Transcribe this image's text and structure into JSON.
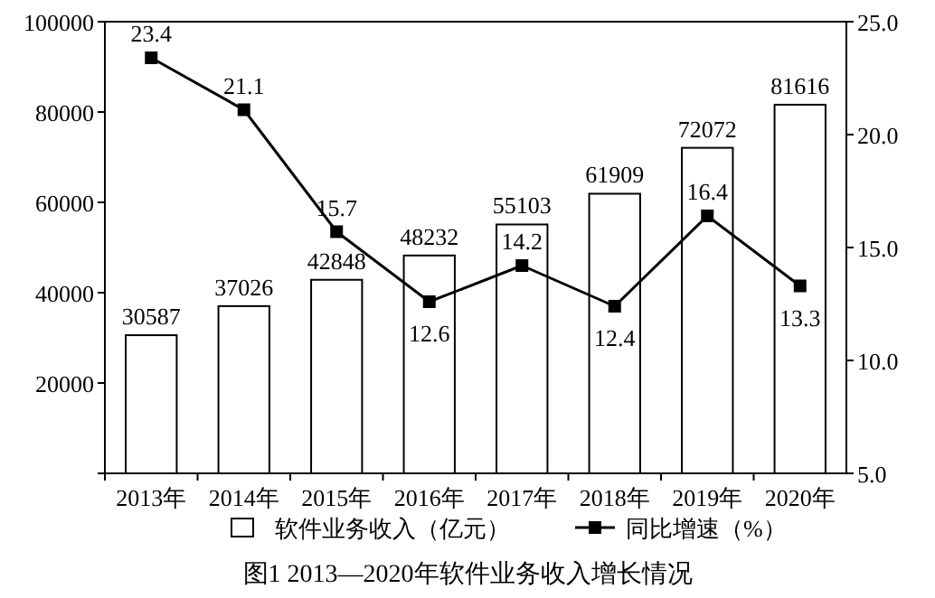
{
  "chart_data": {
    "type": "bar",
    "title": "图1 2013—2020年软件业务收入增长情况",
    "categories": [
      "2013年",
      "2014年",
      "2015年",
      "2016年",
      "2017年",
      "2018年",
      "2019年",
      "2020年"
    ],
    "series": [
      {
        "name": "软件业务收入（亿元）",
        "color": "#ffffff",
        "values": [
          30587,
          37026,
          42848,
          48232,
          55103,
          61909,
          72072,
          81616
        ]
      },
      {
        "name": "同比增速（%）",
        "type": "line",
        "axis": "y2",
        "color": "#000000",
        "marker": "square",
        "values": [
          23.4,
          21.1,
          15.7,
          12.6,
          14.2,
          12.4,
          16.4,
          13.3
        ]
      }
    ],
    "ylim": [
      0,
      100000
    ],
    "yticks": [
      {
        "value": 0,
        "label": null
      },
      20000,
      40000,
      60000,
      80000,
      100000
    ],
    "y2lim": [
      5,
      25
    ],
    "y2ticks": [
      {
        "value": 5,
        "label": "5.0"
      },
      {
        "value": 10,
        "label": "10.0"
      },
      {
        "value": 15,
        "label": "15.0"
      },
      {
        "value": 20,
        "label": "20.0"
      },
      {
        "value": 25,
        "label": "25.0"
      }
    ],
    "data_labels": true,
    "legend": "bottom"
  }
}
